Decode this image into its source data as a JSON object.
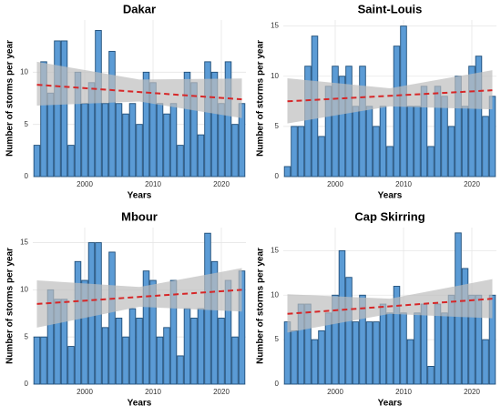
{
  "chart_data": [
    {
      "type": "bar",
      "title": "Dakar",
      "xlabel": "Years",
      "ylabel": "Number of storms per year",
      "x": [
        1993,
        1994,
        1995,
        1996,
        1997,
        1998,
        1999,
        2000,
        2001,
        2002,
        2003,
        2004,
        2005,
        2006,
        2007,
        2008,
        2009,
        2010,
        2011,
        2012,
        2013,
        2014,
        2015,
        2016,
        2017,
        2018,
        2019,
        2020,
        2021,
        2022,
        2023
      ],
      "values": [
        3,
        11,
        8,
        13,
        13,
        3,
        10,
        7,
        9,
        14,
        7,
        12,
        7,
        6,
        7,
        5,
        10,
        9,
        7,
        6,
        7,
        3,
        10,
        9,
        4,
        11,
        10,
        7,
        11,
        5,
        7
      ],
      "color": "#5b9bd5",
      "edgecolor": "#1f4e79",
      "xlim": [
        1992.4,
        2023.6
      ],
      "xticks": [
        2000,
        2010,
        2020
      ],
      "ylim": [
        0,
        15
      ],
      "yticks": [
        0,
        5,
        10
      ],
      "grid": true,
      "trend": {
        "x": [
          1993,
          2023
        ],
        "values": [
          8.8,
          7.4
        ],
        "color": "#d62728"
      },
      "band": {
        "x": [
          1993,
          2008,
          2023
        ],
        "lower": [
          6.8,
          7.2,
          5.6
        ],
        "upper": [
          11,
          9.3,
          9.4
        ],
        "color": "#bdbdbd"
      }
    },
    {
      "type": "bar",
      "title": "Saint-Louis",
      "xlabel": "Years",
      "ylabel": "Number of storms per year",
      "x": [
        1993,
        1994,
        1995,
        1996,
        1997,
        1998,
        1999,
        2000,
        2001,
        2002,
        2003,
        2004,
        2005,
        2006,
        2007,
        2008,
        2009,
        2010,
        2011,
        2012,
        2013,
        2014,
        2015,
        2016,
        2017,
        2018,
        2019,
        2020,
        2021,
        2022,
        2023
      ],
      "values": [
        1,
        5,
        5,
        11,
        14,
        4,
        9,
        11,
        10,
        11,
        7,
        11,
        7,
        5,
        7,
        3,
        13,
        15,
        7,
        7,
        9,
        3,
        9,
        8,
        5,
        10,
        7,
        11,
        12,
        6,
        8
      ],
      "color": "#5b9bd5",
      "edgecolor": "#1f4e79",
      "xlim": [
        1992.4,
        2023.6
      ],
      "xticks": [
        2000,
        2010,
        2020
      ],
      "ylim": [
        0,
        15.6
      ],
      "yticks": [
        0,
        5,
        10,
        15
      ],
      "grid": true,
      "trend": {
        "x": [
          1993,
          2023
        ],
        "values": [
          7.5,
          8.6
        ],
        "color": "#d62728"
      },
      "band": {
        "x": [
          1993,
          2008,
          2023
        ],
        "lower": [
          5.3,
          7,
          6.7
        ],
        "upper": [
          9.8,
          8.8,
          10.6
        ],
        "color": "#bdbdbd"
      }
    },
    {
      "type": "bar",
      "title": "Mbour",
      "xlabel": "Years",
      "ylabel": "Number of storms per year",
      "x": [
        1993,
        1994,
        1995,
        1996,
        1997,
        1998,
        1999,
        2000,
        2001,
        2002,
        2003,
        2004,
        2005,
        2006,
        2007,
        2008,
        2009,
        2010,
        2011,
        2012,
        2013,
        2014,
        2015,
        2016,
        2017,
        2018,
        2019,
        2020,
        2021,
        2022,
        2023
      ],
      "values": [
        5,
        5,
        10,
        9,
        9,
        4,
        13,
        11,
        15,
        15,
        6,
        14,
        7,
        5,
        8,
        7,
        12,
        11,
        5,
        6,
        11,
        3,
        8,
        7,
        8,
        16,
        13,
        7,
        11,
        5,
        12
      ],
      "color": "#5b9bd5",
      "edgecolor": "#1f4e79",
      "xlim": [
        1992.4,
        2023.6
      ],
      "xticks": [
        2000,
        2010,
        2020
      ],
      "ylim": [
        0,
        16.6
      ],
      "yticks": [
        0,
        5,
        10,
        15
      ],
      "grid": true,
      "trend": {
        "x": [
          1993,
          2023
        ],
        "values": [
          8.5,
          10
        ],
        "color": "#d62728"
      },
      "band": {
        "x": [
          1993,
          2008,
          2023
        ],
        "lower": [
          6,
          8.2,
          7.7
        ],
        "upper": [
          11,
          10.3,
          12.3
        ],
        "color": "#bdbdbd"
      }
    },
    {
      "type": "bar",
      "title": "Cap Skirring",
      "xlabel": "Years",
      "ylabel": "Number of storms per year",
      "x": [
        1993,
        1994,
        1995,
        1996,
        1997,
        1998,
        1999,
        2000,
        2001,
        2002,
        2003,
        2004,
        2005,
        2006,
        2007,
        2008,
        2009,
        2010,
        2011,
        2012,
        2013,
        2014,
        2015,
        2016,
        2017,
        2018,
        2019,
        2020,
        2021,
        2022,
        2023
      ],
      "values": [
        7,
        6,
        9,
        9,
        5,
        6,
        8,
        10,
        15,
        12,
        7,
        10,
        7,
        7,
        9,
        8,
        11,
        8,
        5,
        8,
        9,
        2,
        9,
        8,
        10,
        17,
        13,
        10,
        10,
        5,
        10
      ],
      "color": "#5b9bd5",
      "edgecolor": "#1f4e79",
      "xlim": [
        1992.4,
        2023.6
      ],
      "xticks": [
        2000,
        2010,
        2020
      ],
      "ylim": [
        0,
        17.6
      ],
      "yticks": [
        0,
        5,
        10,
        15
      ],
      "grid": true,
      "trend": {
        "x": [
          1993,
          2023
        ],
        "values": [
          7.9,
          9.6
        ],
        "color": "#d62728"
      },
      "band": {
        "x": [
          1993,
          2008,
          2023
        ],
        "lower": [
          5.8,
          7.9,
          7.4
        ],
        "upper": [
          10.1,
          9.6,
          11.8
        ],
        "color": "#bdbdbd"
      }
    }
  ]
}
